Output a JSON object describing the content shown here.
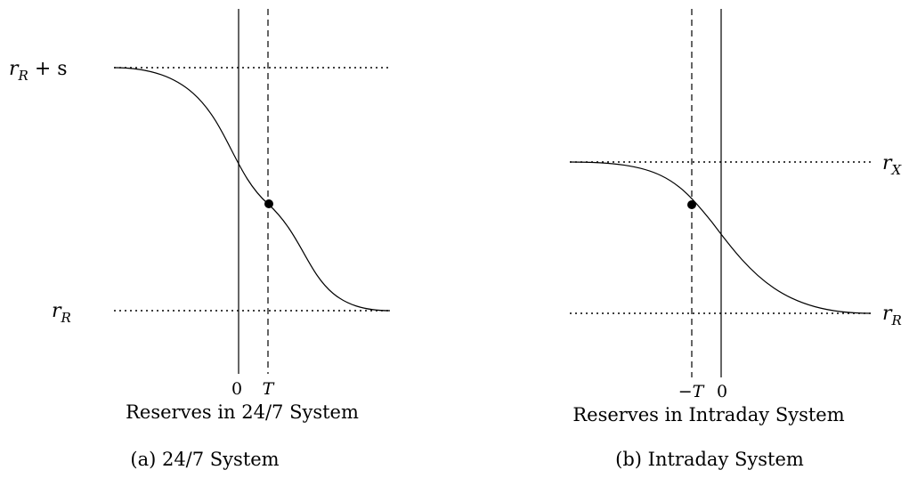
{
  "panel_a": {
    "upper_label_main": "r",
    "upper_label_sub": "R",
    "upper_label_rest": " + s",
    "lower_label_main": "r",
    "lower_label_sub": "R",
    "tick_zero": "0",
    "tick_T": "T",
    "subtitle": "Reserves in 24/7 System",
    "caption": "(a) 24/7 System"
  },
  "panel_b": {
    "upper_label_main": "r",
    "upper_label_sub": "X",
    "lower_label_main": "r",
    "lower_label_sub": "R",
    "tick_negT": "−T",
    "tick_zero": "0",
    "subtitle": "Reserves in Intraday System",
    "caption": "(b) Intraday System"
  }
}
